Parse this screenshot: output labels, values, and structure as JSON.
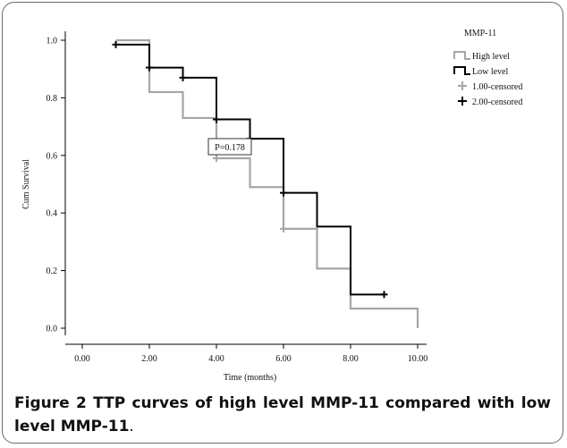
{
  "chart_data": {
    "type": "line",
    "subtype": "kaplan-meier step",
    "xlabel": "Time (months)",
    "ylabel": "Cum Survival",
    "xlim": [
      0,
      10
    ],
    "ylim": [
      0,
      1
    ],
    "xticks": [
      "0.00",
      "2.00",
      "4.00",
      "6.00",
      "8.00",
      "10.00"
    ],
    "yticks": [
      "0.0",
      "0.2",
      "0.4",
      "0.6",
      "0.8",
      "1.0"
    ],
    "grid": false,
    "legend_title": "MMP-11",
    "legend_position": "top-right",
    "annotation": "P=0.178",
    "series": [
      {
        "name": "High level",
        "color": "#a6a6a6",
        "steps": [
          [
            1.0,
            1.0
          ],
          [
            2.0,
            0.82
          ],
          [
            3.0,
            0.73
          ],
          [
            4.0,
            0.59
          ],
          [
            5.0,
            0.49
          ],
          [
            6.0,
            0.345
          ],
          [
            7.0,
            0.207
          ],
          [
            8.0,
            0.068
          ],
          [
            10.0,
            0.0
          ]
        ],
        "censored": [
          [
            4.0,
            0.59
          ],
          [
            6.0,
            0.345
          ]
        ]
      },
      {
        "name": "Low level",
        "color": "#000000",
        "steps": [
          [
            1.0,
            0.985
          ],
          [
            2.0,
            0.905
          ],
          [
            3.0,
            0.87
          ],
          [
            4.0,
            0.725
          ],
          [
            5.0,
            0.658
          ],
          [
            6.0,
            0.47
          ],
          [
            7.0,
            0.353
          ],
          [
            8.0,
            0.117
          ]
        ],
        "end_x": 9.0,
        "censored": [
          [
            1.0,
            0.985
          ],
          [
            2.0,
            0.905
          ],
          [
            3.0,
            0.87
          ],
          [
            4.0,
            0.725
          ],
          [
            5.0,
            0.658
          ],
          [
            6.0,
            0.47
          ],
          [
            9.0,
            0.117
          ]
        ]
      }
    ],
    "legend": [
      {
        "label": "High level",
        "kind": "line",
        "color": "#a6a6a6"
      },
      {
        "label": "Low level",
        "kind": "line",
        "color": "#000000"
      },
      {
        "label": "1.00-censored",
        "kind": "cross",
        "color": "#a6a6a6"
      },
      {
        "label": "2.00-censored",
        "kind": "cross",
        "color": "#000000"
      }
    ]
  },
  "caption": {
    "label": "Figure 2",
    "text": " TTP curves of high level MMP-11 compared with low level MMP-11",
    "end": "."
  }
}
